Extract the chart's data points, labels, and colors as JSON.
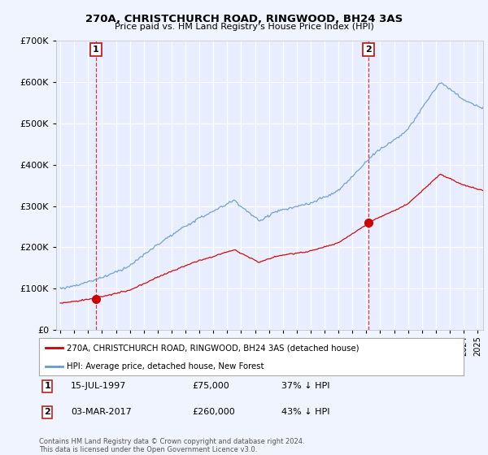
{
  "title_line1": "270A, CHRISTCHURCH ROAD, RINGWOOD, BH24 3AS",
  "title_line2": "Price paid vs. HM Land Registry's House Price Index (HPI)",
  "background_color": "#f0f4ff",
  "plot_bg_color": "#e8eeff",
  "grid_color": "white",
  "red_line_color": "#cc0000",
  "blue_line_color": "#6699cc",
  "marker1_year": 1997.54,
  "marker1_value": 75000,
  "marker2_year": 2017.17,
  "marker2_value": 260000,
  "marker1_label": "1",
  "marker2_label": "2",
  "legend_label_red": "270A, CHRISTCHURCH ROAD, RINGWOOD, BH24 3AS (detached house)",
  "legend_label_blue": "HPI: Average price, detached house, New Forest",
  "footnote": "Contains HM Land Registry data © Crown copyright and database right 2024.\nThis data is licensed under the Open Government Licence v3.0.",
  "ylim": [
    0,
    700000
  ],
  "xlim_start": 1994.7,
  "xlim_end": 2025.4
}
